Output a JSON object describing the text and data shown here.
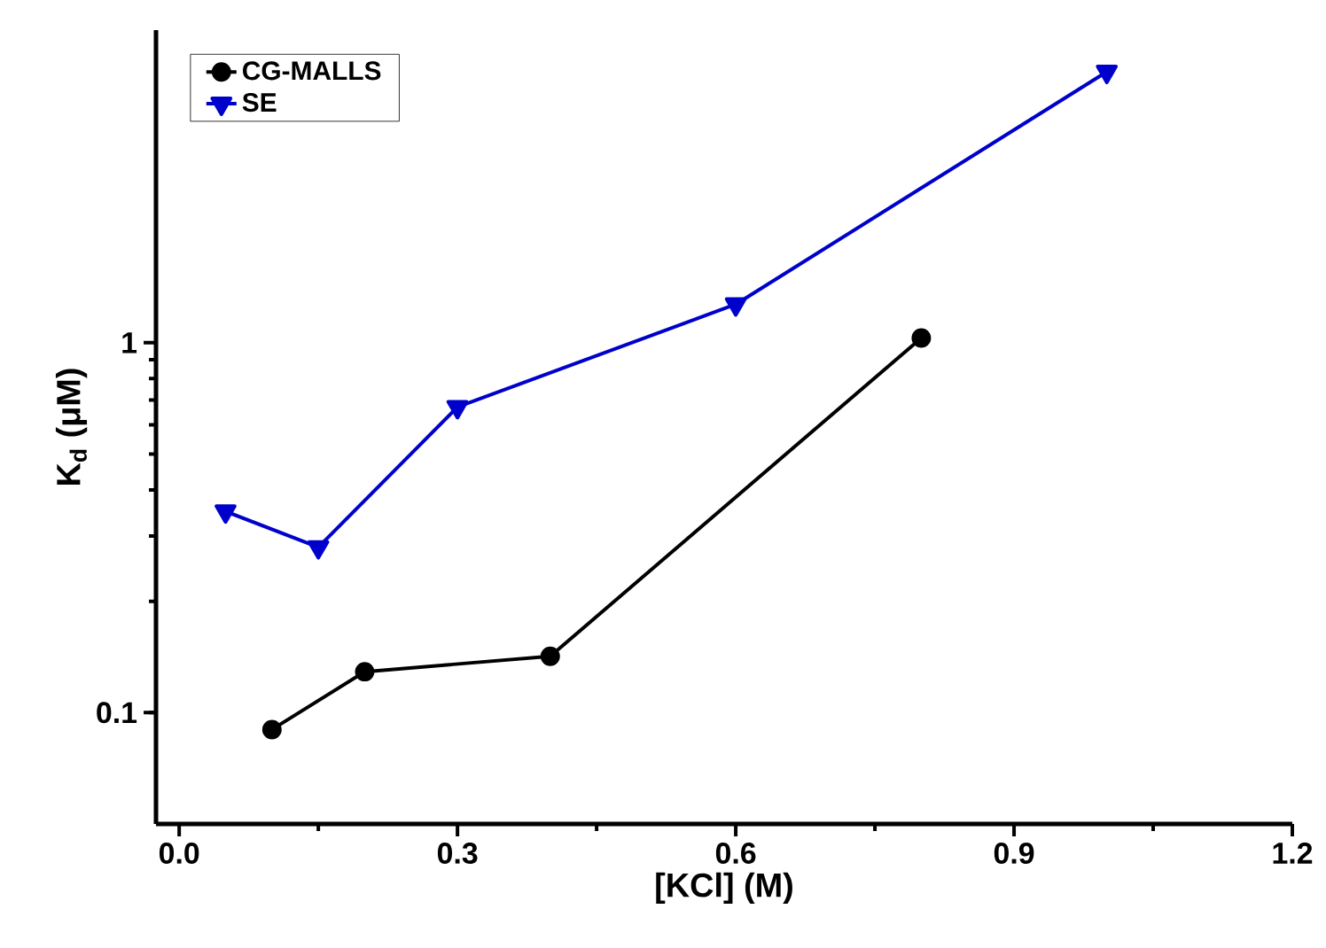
{
  "chart_data": {
    "type": "line",
    "xlabel": "[KCl] (M)",
    "ylabel": "K$_{d}$ (μM)",
    "log": "y",
    "legend": "top left",
    "grid": false,
    "xlim": [
      -0.025,
      1.2
    ],
    "xticks": [
      {
        "value": 0,
        "label": "0.0"
      },
      0.3,
      0.6,
      0.9,
      1.2
    ],
    "ylim": [
      0.05,
      7
    ],
    "yticks": [
      0.1,
      1
    ],
    "series": [
      {
        "name": "CG-MALLS",
        "color": "#000000",
        "marker": "circle",
        "x": [
          0.1,
          0.2,
          0.4,
          0.8
        ],
        "values": [
          0.09,
          0.129,
          0.142,
          1.03
        ]
      },
      {
        "name": "SE",
        "color": "#0000cc",
        "marker": "triangle-down",
        "x": [
          0.05,
          0.15,
          0.3,
          0.6,
          1.0
        ],
        "values": [
          0.35,
          0.28,
          0.67,
          1.27,
          5.4
        ]
      }
    ]
  }
}
